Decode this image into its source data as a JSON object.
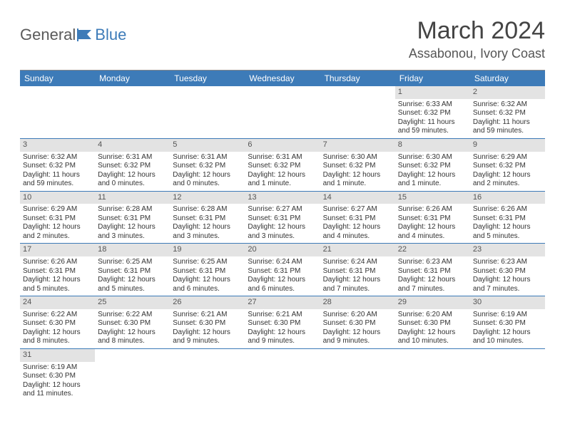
{
  "brand": {
    "part1": "General",
    "part2": "Blue"
  },
  "title": "March 2024",
  "location": "Assabonou, Ivory Coast",
  "weekdays": [
    "Sunday",
    "Monday",
    "Tuesday",
    "Wednesday",
    "Thursday",
    "Friday",
    "Saturday"
  ],
  "colors": {
    "header_bg": "#3d7bb8",
    "daynum_bg": "#e3e3e3",
    "row_border": "#3d7bb8"
  },
  "weeks": [
    [
      null,
      null,
      null,
      null,
      null,
      {
        "n": "1",
        "sr": "6:33 AM",
        "ss": "6:32 PM",
        "dl": "11 hours and 59 minutes."
      },
      {
        "n": "2",
        "sr": "6:32 AM",
        "ss": "6:32 PM",
        "dl": "11 hours and 59 minutes."
      }
    ],
    [
      {
        "n": "3",
        "sr": "6:32 AM",
        "ss": "6:32 PM",
        "dl": "11 hours and 59 minutes."
      },
      {
        "n": "4",
        "sr": "6:31 AM",
        "ss": "6:32 PM",
        "dl": "12 hours and 0 minutes."
      },
      {
        "n": "5",
        "sr": "6:31 AM",
        "ss": "6:32 PM",
        "dl": "12 hours and 0 minutes."
      },
      {
        "n": "6",
        "sr": "6:31 AM",
        "ss": "6:32 PM",
        "dl": "12 hours and 1 minute."
      },
      {
        "n": "7",
        "sr": "6:30 AM",
        "ss": "6:32 PM",
        "dl": "12 hours and 1 minute."
      },
      {
        "n": "8",
        "sr": "6:30 AM",
        "ss": "6:32 PM",
        "dl": "12 hours and 1 minute."
      },
      {
        "n": "9",
        "sr": "6:29 AM",
        "ss": "6:32 PM",
        "dl": "12 hours and 2 minutes."
      }
    ],
    [
      {
        "n": "10",
        "sr": "6:29 AM",
        "ss": "6:31 PM",
        "dl": "12 hours and 2 minutes."
      },
      {
        "n": "11",
        "sr": "6:28 AM",
        "ss": "6:31 PM",
        "dl": "12 hours and 3 minutes."
      },
      {
        "n": "12",
        "sr": "6:28 AM",
        "ss": "6:31 PM",
        "dl": "12 hours and 3 minutes."
      },
      {
        "n": "13",
        "sr": "6:27 AM",
        "ss": "6:31 PM",
        "dl": "12 hours and 3 minutes."
      },
      {
        "n": "14",
        "sr": "6:27 AM",
        "ss": "6:31 PM",
        "dl": "12 hours and 4 minutes."
      },
      {
        "n": "15",
        "sr": "6:26 AM",
        "ss": "6:31 PM",
        "dl": "12 hours and 4 minutes."
      },
      {
        "n": "16",
        "sr": "6:26 AM",
        "ss": "6:31 PM",
        "dl": "12 hours and 5 minutes."
      }
    ],
    [
      {
        "n": "17",
        "sr": "6:26 AM",
        "ss": "6:31 PM",
        "dl": "12 hours and 5 minutes."
      },
      {
        "n": "18",
        "sr": "6:25 AM",
        "ss": "6:31 PM",
        "dl": "12 hours and 5 minutes."
      },
      {
        "n": "19",
        "sr": "6:25 AM",
        "ss": "6:31 PM",
        "dl": "12 hours and 6 minutes."
      },
      {
        "n": "20",
        "sr": "6:24 AM",
        "ss": "6:31 PM",
        "dl": "12 hours and 6 minutes."
      },
      {
        "n": "21",
        "sr": "6:24 AM",
        "ss": "6:31 PM",
        "dl": "12 hours and 7 minutes."
      },
      {
        "n": "22",
        "sr": "6:23 AM",
        "ss": "6:31 PM",
        "dl": "12 hours and 7 minutes."
      },
      {
        "n": "23",
        "sr": "6:23 AM",
        "ss": "6:30 PM",
        "dl": "12 hours and 7 minutes."
      }
    ],
    [
      {
        "n": "24",
        "sr": "6:22 AM",
        "ss": "6:30 PM",
        "dl": "12 hours and 8 minutes."
      },
      {
        "n": "25",
        "sr": "6:22 AM",
        "ss": "6:30 PM",
        "dl": "12 hours and 8 minutes."
      },
      {
        "n": "26",
        "sr": "6:21 AM",
        "ss": "6:30 PM",
        "dl": "12 hours and 9 minutes."
      },
      {
        "n": "27",
        "sr": "6:21 AM",
        "ss": "6:30 PM",
        "dl": "12 hours and 9 minutes."
      },
      {
        "n": "28",
        "sr": "6:20 AM",
        "ss": "6:30 PM",
        "dl": "12 hours and 9 minutes."
      },
      {
        "n": "29",
        "sr": "6:20 AM",
        "ss": "6:30 PM",
        "dl": "12 hours and 10 minutes."
      },
      {
        "n": "30",
        "sr": "6:19 AM",
        "ss": "6:30 PM",
        "dl": "12 hours and 10 minutes."
      }
    ],
    [
      {
        "n": "31",
        "sr": "6:19 AM",
        "ss": "6:30 PM",
        "dl": "12 hours and 11 minutes."
      },
      null,
      null,
      null,
      null,
      null,
      null
    ]
  ],
  "labels": {
    "sunrise": "Sunrise:",
    "sunset": "Sunset:",
    "daylight": "Daylight:"
  }
}
